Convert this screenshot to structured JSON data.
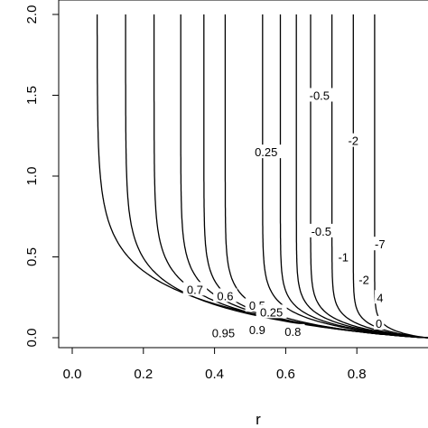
{
  "chart_data": {
    "type": "contour",
    "xlabel": "r",
    "ylabel": "",
    "title": "",
    "xlim": [
      -0.05,
      1.0
    ],
    "ylim": [
      -0.05,
      2.03
    ],
    "x_ticks": [
      0.0,
      0.2,
      0.4,
      0.6,
      0.8
    ],
    "x_tick_labels": [
      "0.0",
      "0.2",
      "0.4",
      "0.6",
      "0.8"
    ],
    "y_ticks": [
      0.0,
      0.5,
      1.0,
      1.5,
      2.0
    ],
    "y_tick_labels": [
      "0.0",
      "0.5",
      "1.0",
      "1.5",
      "2.0"
    ],
    "grid": false,
    "contour_levels": [
      {
        "label": "0.95",
        "r_asymptote": 0.07,
        "knee": 0.22
      },
      {
        "label": "0.9",
        "r_asymptote": 0.15,
        "knee": 0.18
      },
      {
        "label": "0.8",
        "r_asymptote": 0.23,
        "knee": 0.16
      },
      {
        "label": "0.7",
        "r_asymptote": 0.305,
        "knee": 0.14
      },
      {
        "label": "0.6",
        "r_asymptote": 0.37,
        "knee": 0.12
      },
      {
        "label": "0.5",
        "r_asymptote": 0.43,
        "knee": 0.11
      },
      {
        "label": "0.25",
        "r_asymptote": 0.535,
        "knee": 0.1
      },
      {
        "label": "",
        "r_asymptote": 0.585,
        "knee": 0.09
      },
      {
        "label": "-0.5",
        "r_asymptote": 0.63,
        "knee": 0.085
      },
      {
        "label": "-1",
        "r_asymptote": 0.67,
        "knee": 0.08
      },
      {
        "label": "-2",
        "r_asymptote": 0.73,
        "knee": 0.07
      },
      {
        "label": "-4",
        "r_asymptote": 0.79,
        "knee": 0.06
      },
      {
        "label": "-7",
        "r_asymptote": 0.85,
        "knee": 0.05
      }
    ],
    "inline_labels": [
      {
        "text": "0.95",
        "x": 0.425,
        "y": 0.03
      },
      {
        "text": "0.9",
        "x": 0.52,
        "y": 0.05
      },
      {
        "text": "0.8",
        "x": 0.62,
        "y": 0.04
      },
      {
        "text": "0.7",
        "x": 0.345,
        "y": 0.3
      },
      {
        "text": "0.6",
        "x": 0.43,
        "y": 0.26
      },
      {
        "text": "0.5",
        "x": 0.52,
        "y": 0.2
      },
      {
        "text": "0.25",
        "x": 0.56,
        "y": 0.16
      },
      {
        "text": "0.25",
        "x": 0.545,
        "y": 1.15
      },
      {
        "text": "-0.5",
        "x": 0.695,
        "y": 1.5
      },
      {
        "text": "-2",
        "x": 0.79,
        "y": 1.22
      },
      {
        "text": "-0.5",
        "x": 0.7,
        "y": 0.66
      },
      {
        "text": "-1",
        "x": 0.762,
        "y": 0.5
      },
      {
        "text": "-2",
        "x": 0.82,
        "y": 0.36
      },
      {
        "text": "-7",
        "x": 0.865,
        "y": 0.58
      },
      {
        "text": "4",
        "x": 0.865,
        "y": 0.25
      },
      {
        "text": "0",
        "x": 0.862,
        "y": 0.09
      }
    ]
  }
}
